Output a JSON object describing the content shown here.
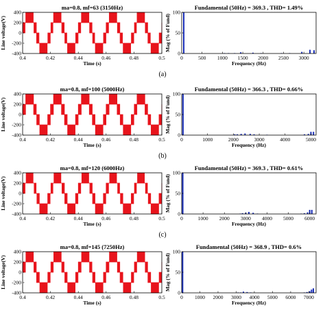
{
  "figure": {
    "panels": [
      {
        "letter": "(a)",
        "waveform": {
          "title": "ma=0.8, mf=63 (3150Hz)",
          "xlabel": "Time (s)",
          "ylabel": "Line voltage(V)",
          "xticks": [
            "0.4",
            "0.42",
            "0.44",
            "0.46",
            "0.48",
            "0.5"
          ],
          "yticks": [
            "400",
            "200",
            "0",
            "-200",
            "-400"
          ]
        },
        "spectrum": {
          "title": "Fundamental (50Hz) = 369.3 , THD= 1.49%",
          "xlabel": "Frequency (Hz)",
          "ylabel": "Mag (% of Fund)",
          "xticks": [
            "0",
            "500",
            "1000",
            "1500",
            "2000",
            "2500",
            "3000"
          ],
          "yticks": [
            "100",
            "50",
            "0"
          ]
        }
      },
      {
        "letter": "(b)",
        "waveform": {
          "title": "ma=0.8, mf=100 (5000Hz)",
          "xlabel": "Time (s)",
          "ylabel": "Line voltage(V)",
          "xticks": [
            "0.4",
            "0.42",
            "0.44",
            "0.46",
            "0.48",
            "0.5"
          ],
          "yticks": [
            "400",
            "200",
            "0",
            "-200",
            "-400"
          ]
        },
        "spectrum": {
          "title": "Fundamental (50Hz) = 366.3 , THD= 0.66%",
          "xlabel": "Frequency (Hz)",
          "ylabel": "Mag (% of Fund)",
          "xticks": [
            "0",
            "1000",
            "2000",
            "3000",
            "4000",
            "5000"
          ],
          "yticks": [
            "100",
            "50",
            "0"
          ]
        }
      },
      {
        "letter": "(c)",
        "waveform": {
          "title": "ma=0.8, mf=120 (6000Hz)",
          "xlabel": "Time (s)",
          "ylabel": "Line voltage(V)",
          "xticks": [
            "0.4",
            "0.42",
            "0.44",
            "0.46",
            "0.48",
            "0.5"
          ],
          "yticks": [
            "400",
            "200",
            "0",
            "-200",
            "-400"
          ]
        },
        "spectrum": {
          "title": "Fundamental (50Hz) = 369.3 , THD= 0.61%",
          "xlabel": "Frequency (Hz)",
          "ylabel": "Mag (% of Fund)",
          "xticks": [
            "0",
            "1000",
            "2000",
            "3000",
            "4000",
            "5000",
            "6000"
          ],
          "yticks": [
            "100",
            "50",
            "0"
          ]
        }
      },
      {
        "letter": "(d)",
        "waveform": {
          "title": "ma=0.8, mf=145 (7250Hz)",
          "xlabel": "Time (s)",
          "ylabel": "Line voltage(V)",
          "xticks": [
            "0.4",
            "0.42",
            "0.44",
            "0.46",
            "0.48",
            "0.5"
          ],
          "yticks": [
            "400",
            "200",
            "0",
            "-200",
            "-400"
          ]
        },
        "spectrum": {
          "title": "Fundamental (50Hz) = 368.9 , THD= 0.6%",
          "xlabel": "Frequency (Hz)",
          "ylabel": "Mag (% of Fund)",
          "xticks": [
            "0",
            "1000",
            "2000",
            "3000",
            "4000",
            "5000",
            "6000",
            "7000"
          ],
          "yticks": [
            "100",
            "50",
            "0"
          ]
        }
      }
    ]
  },
  "colors": {
    "waveform": "#e8141c",
    "spectrum": "#1a2fb8",
    "axis": "#000000"
  },
  "chart_data": [
    {
      "type": "line",
      "title": "ma=0.8, mf=63 (3150Hz)",
      "xlabel": "Time (s)",
      "ylabel": "Line voltage(V)",
      "xlim": [
        0.4,
        0.5
      ],
      "ylim": [
        -400,
        400
      ],
      "fundamental_hz": 50,
      "switching_hz": 3150,
      "peak_v": 400,
      "levels": 5,
      "modulation_index": 0.8
    },
    {
      "type": "bar",
      "title": "Fundamental (50Hz) = 369.3 , THD= 1.49%",
      "xlabel": "Frequency (Hz)",
      "ylabel": "Mag (% of Fund)",
      "xlim": [
        0,
        3300
      ],
      "ylim": [
        0,
        100
      ],
      "x": [
        50,
        1050,
        1150,
        1300,
        1450,
        1750,
        1950,
        2450,
        2650,
        2950,
        3150,
        3250
      ],
      "values": [
        100,
        1,
        1,
        1,
        3,
        2,
        1,
        1,
        1,
        4,
        9,
        8
      ]
    },
    {
      "type": "line",
      "title": "ma=0.8, mf=100 (5000Hz)",
      "xlabel": "Time (s)",
      "ylabel": "Line voltage(V)",
      "xlim": [
        0.4,
        0.5
      ],
      "ylim": [
        -400,
        400
      ],
      "fundamental_hz": 50,
      "switching_hz": 5000,
      "peak_v": 400,
      "levels": 5,
      "modulation_index": 0.8
    },
    {
      "type": "bar",
      "title": "Fundamental (50Hz) = 366.3 , THD= 0.66%",
      "xlabel": "Frequency (Hz)",
      "ylabel": "Mag (% of Fund)",
      "xlim": [
        0,
        5200
      ],
      "ylim": [
        0,
        100
      ],
      "x": [
        50,
        2050,
        2150,
        2300,
        2450,
        2650,
        2800,
        3300,
        4750,
        4900,
        5000,
        5100
      ],
      "values": [
        100,
        2,
        2,
        3,
        4,
        3,
        2,
        1,
        2,
        3,
        8,
        8
      ]
    },
    {
      "type": "line",
      "title": "ma=0.8, mf=120 (6000Hz)",
      "xlabel": "Time (s)",
      "ylabel": "Line voltage(V)",
      "xlim": [
        0.4,
        0.5
      ],
      "ylim": [
        -400,
        400
      ],
      "fundamental_hz": 50,
      "switching_hz": 6000,
      "peak_v": 400,
      "levels": 5,
      "modulation_index": 0.8
    },
    {
      "type": "bar",
      "title": "Fundamental (50Hz) = 369.3 , THD= 0.61%",
      "xlabel": "Frequency (Hz)",
      "ylabel": "Mag (% of Fund)",
      "xlim": [
        0,
        6300
      ],
      "ylim": [
        0,
        100
      ],
      "x": [
        50,
        2750,
        2850,
        3000,
        3150,
        3350,
        3550,
        5600,
        5750,
        5900,
        6000,
        6100
      ],
      "values": [
        100,
        1,
        2,
        3,
        5,
        3,
        1,
        1,
        2,
        4,
        10,
        10
      ]
    },
    {
      "type": "line",
      "title": "ma=0.8, mf=145 (7250Hz)",
      "xlabel": "Time (s)",
      "ylabel": "Line voltage(V)",
      "xlim": [
        0.4,
        0.5
      ],
      "ylim": [
        -400,
        400
      ],
      "fundamental_hz": 50,
      "switching_hz": 7250,
      "peak_v": 400,
      "levels": 5,
      "modulation_index": 0.8
    },
    {
      "type": "bar",
      "title": "Fundamental (50Hz) = 368.9 , THD= 0.6%",
      "xlabel": "Frequency (Hz)",
      "ylabel": "Mag (% of Fund)",
      "xlim": [
        0,
        7400
      ],
      "ylim": [
        0,
        100
      ],
      "x": [
        50,
        3100,
        3250,
        3400,
        3600,
        3800,
        6750,
        6900,
        7050,
        7150,
        7250
      ],
      "values": [
        100,
        1,
        1,
        3,
        2,
        1,
        1,
        2,
        4,
        8,
        11
      ]
    }
  ]
}
